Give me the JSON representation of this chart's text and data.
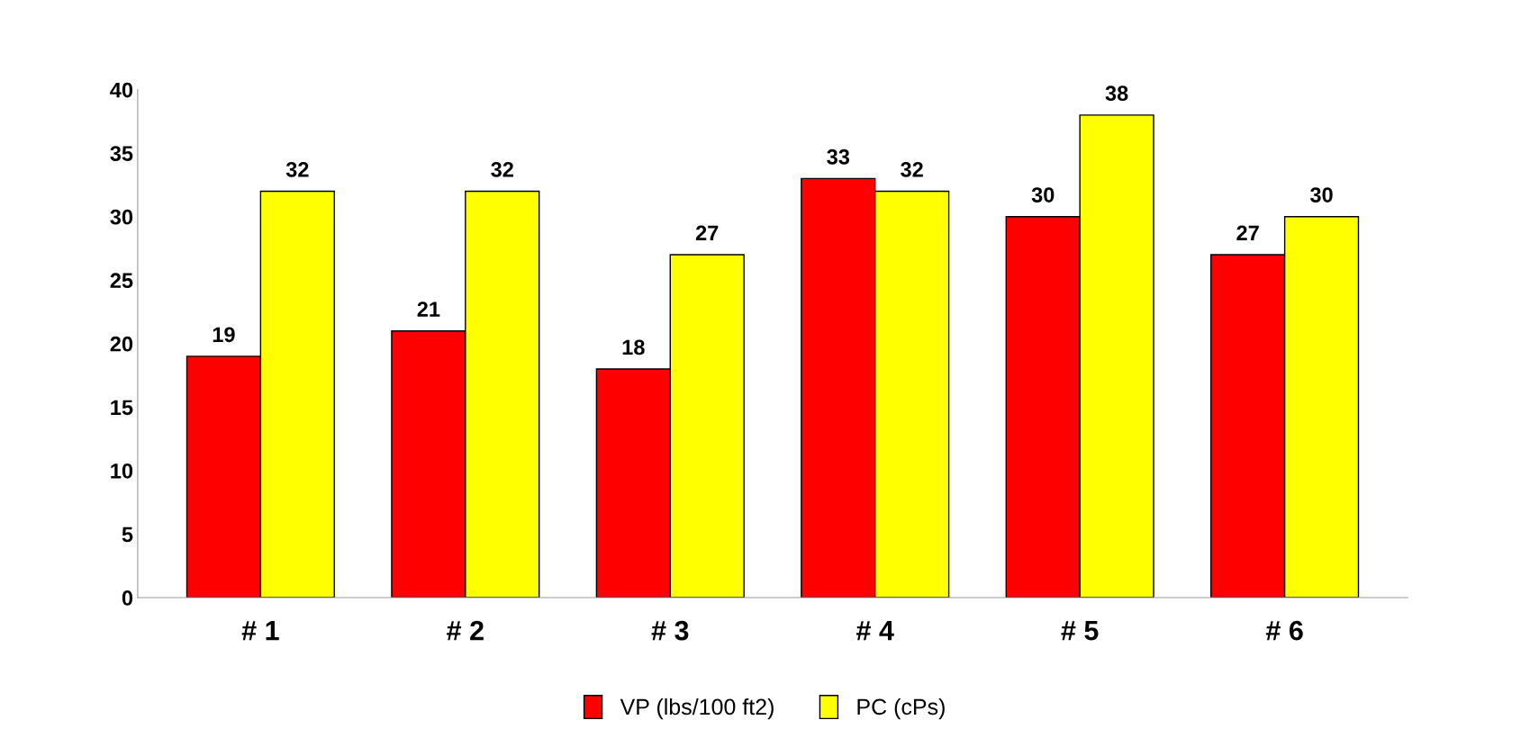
{
  "chart_data": {
    "type": "bar",
    "categories": [
      "# 1",
      "# 2",
      "# 3",
      "# 4",
      "# 5",
      "# 6"
    ],
    "series": [
      {
        "name": "VP (lbs/100 ft2)",
        "color": "#ff0000",
        "values": [
          19,
          21,
          18,
          33,
          30,
          27
        ]
      },
      {
        "name": "PC (cPs)",
        "color": "#ffff00",
        "values": [
          32,
          32,
          27,
          32,
          38,
          30
        ]
      }
    ],
    "ylim": [
      0,
      40
    ],
    "yticks": [
      0,
      5,
      10,
      15,
      20,
      25,
      30,
      35,
      40
    ],
    "data_labels": true,
    "legend": "bottom",
    "grid": false
  }
}
